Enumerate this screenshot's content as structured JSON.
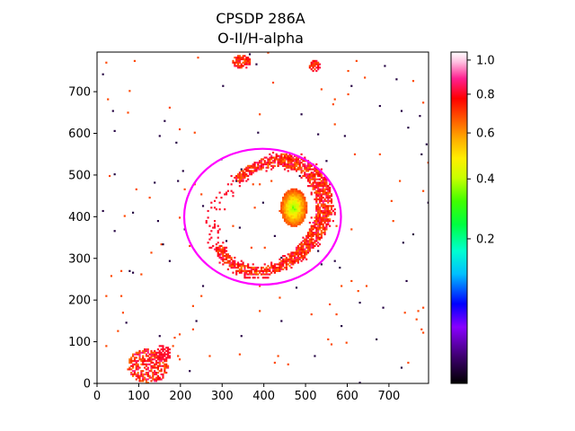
{
  "chart_data": {
    "type": "heatmap",
    "title": "CPSDP 286A",
    "subtitle": "O-II/H-alpha",
    "xlabel": "",
    "ylabel": "",
    "xlim": [
      0,
      795
    ],
    "ylim": [
      0,
      795
    ],
    "x_ticks": [
      0,
      100,
      200,
      300,
      400,
      500,
      600,
      700
    ],
    "y_ticks": [
      0,
      100,
      200,
      300,
      400,
      500,
      600,
      700
    ],
    "colorbar": {
      "label": "",
      "colormap": "gist_ncar-like (black, purple, blue, cyan, green, yellow, orange, red, pink, white)",
      "scale": "nonlinear (square-root-like)",
      "range": [
        0,
        1.05
      ],
      "ticks": [
        0.2,
        0.4,
        0.6,
        0.8,
        1.0
      ],
      "tick_labels": [
        "0.2",
        "0.4",
        "0.6",
        "0.8",
        "1.0"
      ]
    },
    "ellipse": {
      "color": "#ff00ff",
      "center": [
        397,
        400
      ],
      "semi_axis_x": 188,
      "semi_axis_y": 163
    },
    "emission_regions": [
      {
        "name": "shell",
        "shape": "ring",
        "center": [
          410,
          400
        ],
        "approx_radius": 140,
        "typical_value": 0.85
      },
      {
        "name": "bright-knot-east",
        "center": [
          470,
          420
        ],
        "typical_value": 0.55
      },
      {
        "name": "top-edge-clump",
        "center": [
          345,
          770
        ],
        "typical_value": 0.85
      },
      {
        "name": "lower-left-clump",
        "center": [
          120,
          40
        ],
        "typical_value": 0.85
      }
    ]
  }
}
